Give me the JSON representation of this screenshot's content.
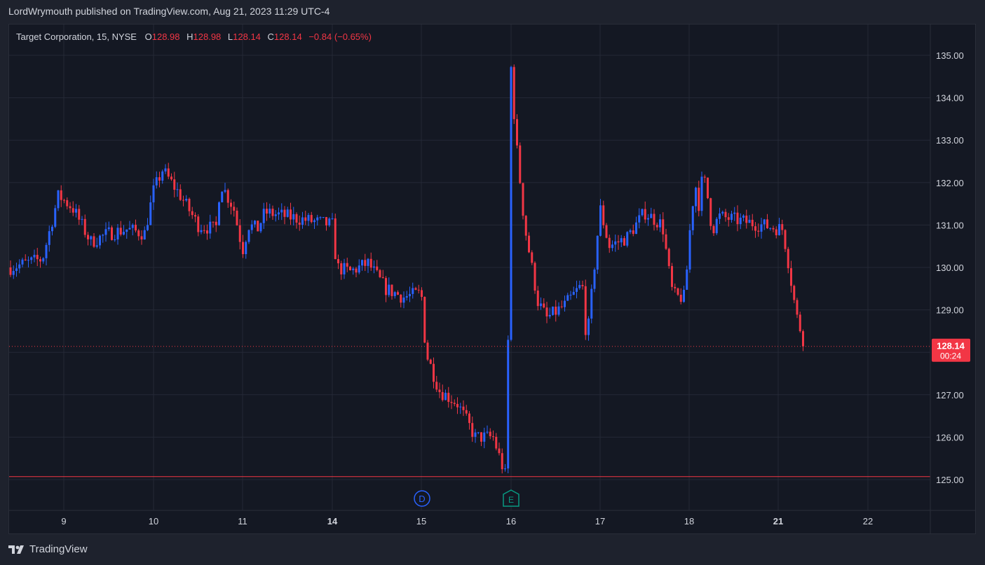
{
  "header": {
    "published_by": "LordWrymouth published on TradingView.com, Aug 21, 2023 11:29 UTC-4"
  },
  "legend": {
    "symbol": "Target Corporation, 15, NYSE",
    "open_label": "O",
    "open": "128.98",
    "high_label": "H",
    "high": "128.98",
    "low_label": "L",
    "low": "128.14",
    "close_label": "C",
    "close": "128.14",
    "change": "−0.84 (−0.65%)"
  },
  "price_tag": {
    "price": "128.14",
    "countdown": "00:24"
  },
  "markers": {
    "dividend": "D",
    "earnings": "E"
  },
  "footer": {
    "brand": "TradingView"
  },
  "colors": {
    "up": "#2962ff",
    "down": "#f23645",
    "background": "#141823",
    "grid": "#242936",
    "text": "#d1d4dc"
  },
  "chart_data": {
    "type": "candlestick",
    "x_ticks": [
      "9",
      "10",
      "11",
      "14",
      "15",
      "16",
      "17",
      "18",
      "21",
      "22"
    ],
    "y_ticks": [
      "125.00",
      "126.00",
      "127.00",
      "128.00",
      "129.00",
      "130.00",
      "131.00",
      "132.00",
      "133.00",
      "134.00",
      "135.00"
    ],
    "ylim": [
      124.4,
      135.8
    ],
    "last_price": 128.14,
    "support_level": 125.07,
    "grid": true,
    "path": [
      [
        8.5,
        130.0
      ],
      [
        8.8,
        130.2
      ],
      [
        8.95,
        131.7
      ],
      [
        9.1,
        131.4
      ],
      [
        9.3,
        130.6
      ],
      [
        9.5,
        130.8
      ],
      [
        9.7,
        130.9
      ],
      [
        9.9,
        130.8
      ],
      [
        10.0,
        131.8
      ],
      [
        10.1,
        132.3
      ],
      [
        10.3,
        131.7
      ],
      [
        10.5,
        131.0
      ],
      [
        10.7,
        130.9
      ],
      [
        10.75,
        132.0
      ],
      [
        10.9,
        131.4
      ],
      [
        11.0,
        130.4
      ],
      [
        11.2,
        131.0
      ],
      [
        11.5,
        130.9
      ],
      [
        11.75,
        131.3
      ],
      [
        14.0,
        131.0
      ],
      [
        14.05,
        130.0
      ],
      [
        14.2,
        129.9
      ],
      [
        14.4,
        130.1
      ],
      [
        14.6,
        129.5
      ],
      [
        14.8,
        129.3
      ],
      [
        15.0,
        129.4
      ],
      [
        15.05,
        128.0
      ],
      [
        15.2,
        127.1
      ],
      [
        15.4,
        126.8
      ],
      [
        15.6,
        126.0
      ],
      [
        15.8,
        126.0
      ],
      [
        15.95,
        125.0
      ],
      [
        16.0,
        134.7
      ],
      [
        16.05,
        133.1
      ],
      [
        16.15,
        131.0
      ],
      [
        16.3,
        129.2
      ],
      [
        16.4,
        128.8
      ],
      [
        16.6,
        129.1
      ],
      [
        16.8,
        129.6
      ],
      [
        16.85,
        128.2
      ],
      [
        17.0,
        131.4
      ],
      [
        17.1,
        130.5
      ],
      [
        17.3,
        130.7
      ],
      [
        17.5,
        131.3
      ],
      [
        17.7,
        131.0
      ],
      [
        17.8,
        129.5
      ],
      [
        17.85,
        129.3
      ],
      [
        17.95,
        129.3
      ],
      [
        18.05,
        131.1
      ],
      [
        18.2,
        132.0
      ],
      [
        18.35,
        131.4
      ],
      [
        18.45,
        132.2
      ],
      [
        18.6,
        131.8
      ],
      [
        18.7,
        131.2
      ],
      [
        18.8,
        130.9
      ],
      [
        19.0,
        131.2
      ],
      [
        21.05,
        130.9
      ],
      [
        21.1,
        130.3
      ],
      [
        21.15,
        129.6
      ],
      [
        21.2,
        128.9
      ],
      [
        21.3,
        128.14
      ]
    ]
  }
}
